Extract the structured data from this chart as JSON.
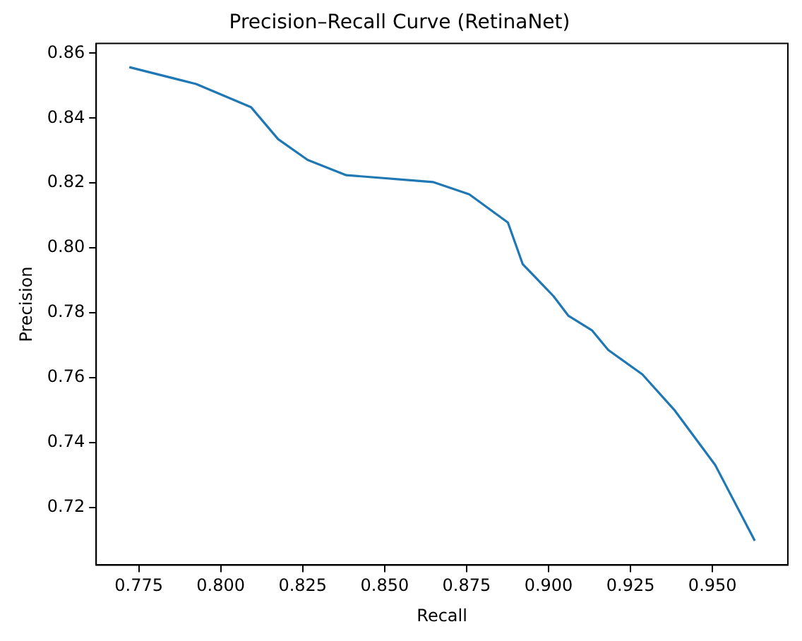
{
  "chart_data": {
    "type": "line",
    "title": "Precision–Recall Curve (RetinaNet)",
    "xlabel": "Recall",
    "ylabel": "Precision",
    "x": [
      0.7721,
      0.7925,
      0.8092,
      0.8175,
      0.8265,
      0.8383,
      0.8647,
      0.8758,
      0.8876,
      0.8921,
      0.9015,
      0.906,
      0.9133,
      0.9182,
      0.9286,
      0.9383,
      0.9508,
      0.9629
    ],
    "series": [
      {
        "color": "#1f77b4",
        "values": [
          0.8557,
          0.8505,
          0.8434,
          0.8335,
          0.8271,
          0.8224,
          0.8203,
          0.8165,
          0.8078,
          0.795,
          0.7851,
          0.7791,
          0.7745,
          0.7685,
          0.761,
          0.7501,
          0.7331,
          0.7097
        ]
      }
    ],
    "xlim": [
      0.762,
      0.973
    ],
    "ylim": [
      0.7022,
      0.863
    ],
    "xticks": [
      {
        "value": 0.775,
        "label": "0.775"
      },
      {
        "value": 0.8,
        "label": "0.800"
      },
      {
        "value": 0.825,
        "label": "0.825"
      },
      {
        "value": 0.85,
        "label": "0.850"
      },
      {
        "value": 0.875,
        "label": "0.875"
      },
      {
        "value": 0.9,
        "label": "0.900"
      },
      {
        "value": 0.925,
        "label": "0.925"
      },
      {
        "value": 0.95,
        "label": "0.950"
      }
    ],
    "yticks": [
      {
        "value": 0.72,
        "label": "0.72"
      },
      {
        "value": 0.74,
        "label": "0.74"
      },
      {
        "value": 0.76,
        "label": "0.76"
      },
      {
        "value": 0.78,
        "label": "0.78"
      },
      {
        "value": 0.8,
        "label": "0.80"
      },
      {
        "value": 0.82,
        "label": "0.82"
      },
      {
        "value": 0.84,
        "label": "0.84"
      },
      {
        "value": 0.86,
        "label": "0.86"
      }
    ],
    "grid": false,
    "legend": false,
    "marker": "none",
    "line_style": "solid"
  }
}
